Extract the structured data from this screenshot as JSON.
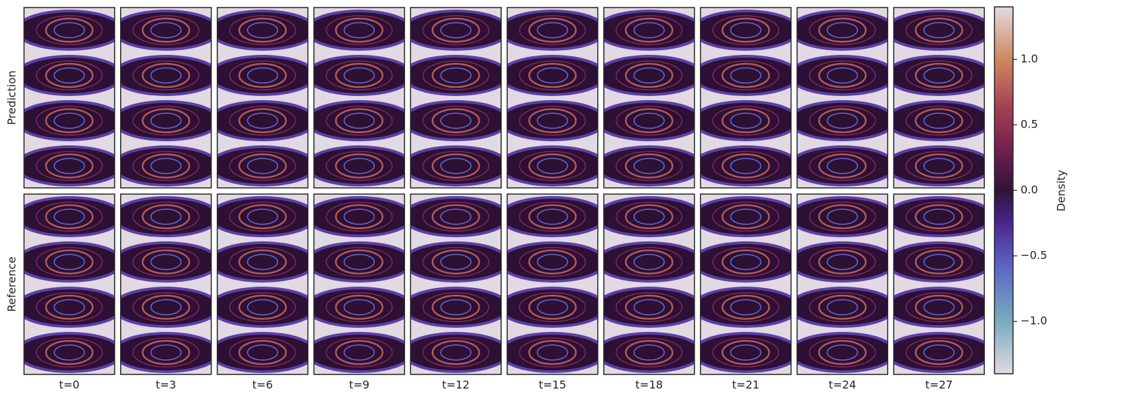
{
  "chart_data": {
    "type": "heatmap-grid",
    "row_labels": [
      "Prediction",
      "Reference"
    ],
    "column_labels": [
      "t=0",
      "t=3",
      "t=6",
      "t=9",
      "t=12",
      "t=15",
      "t=18",
      "t=21",
      "t=24",
      "t=27"
    ],
    "colorbar": {
      "label": "Density",
      "clim": [
        -1.4,
        1.4
      ],
      "ticks": [
        {
          "value": -1,
          "label": "−1.0"
        },
        {
          "value": -0.5,
          "label": "−0.5"
        },
        {
          "value": 0,
          "label": "0.0"
        },
        {
          "value": 0.5,
          "label": "0.5"
        },
        {
          "value": 1,
          "label": "1.0"
        }
      ]
    }
  }
}
